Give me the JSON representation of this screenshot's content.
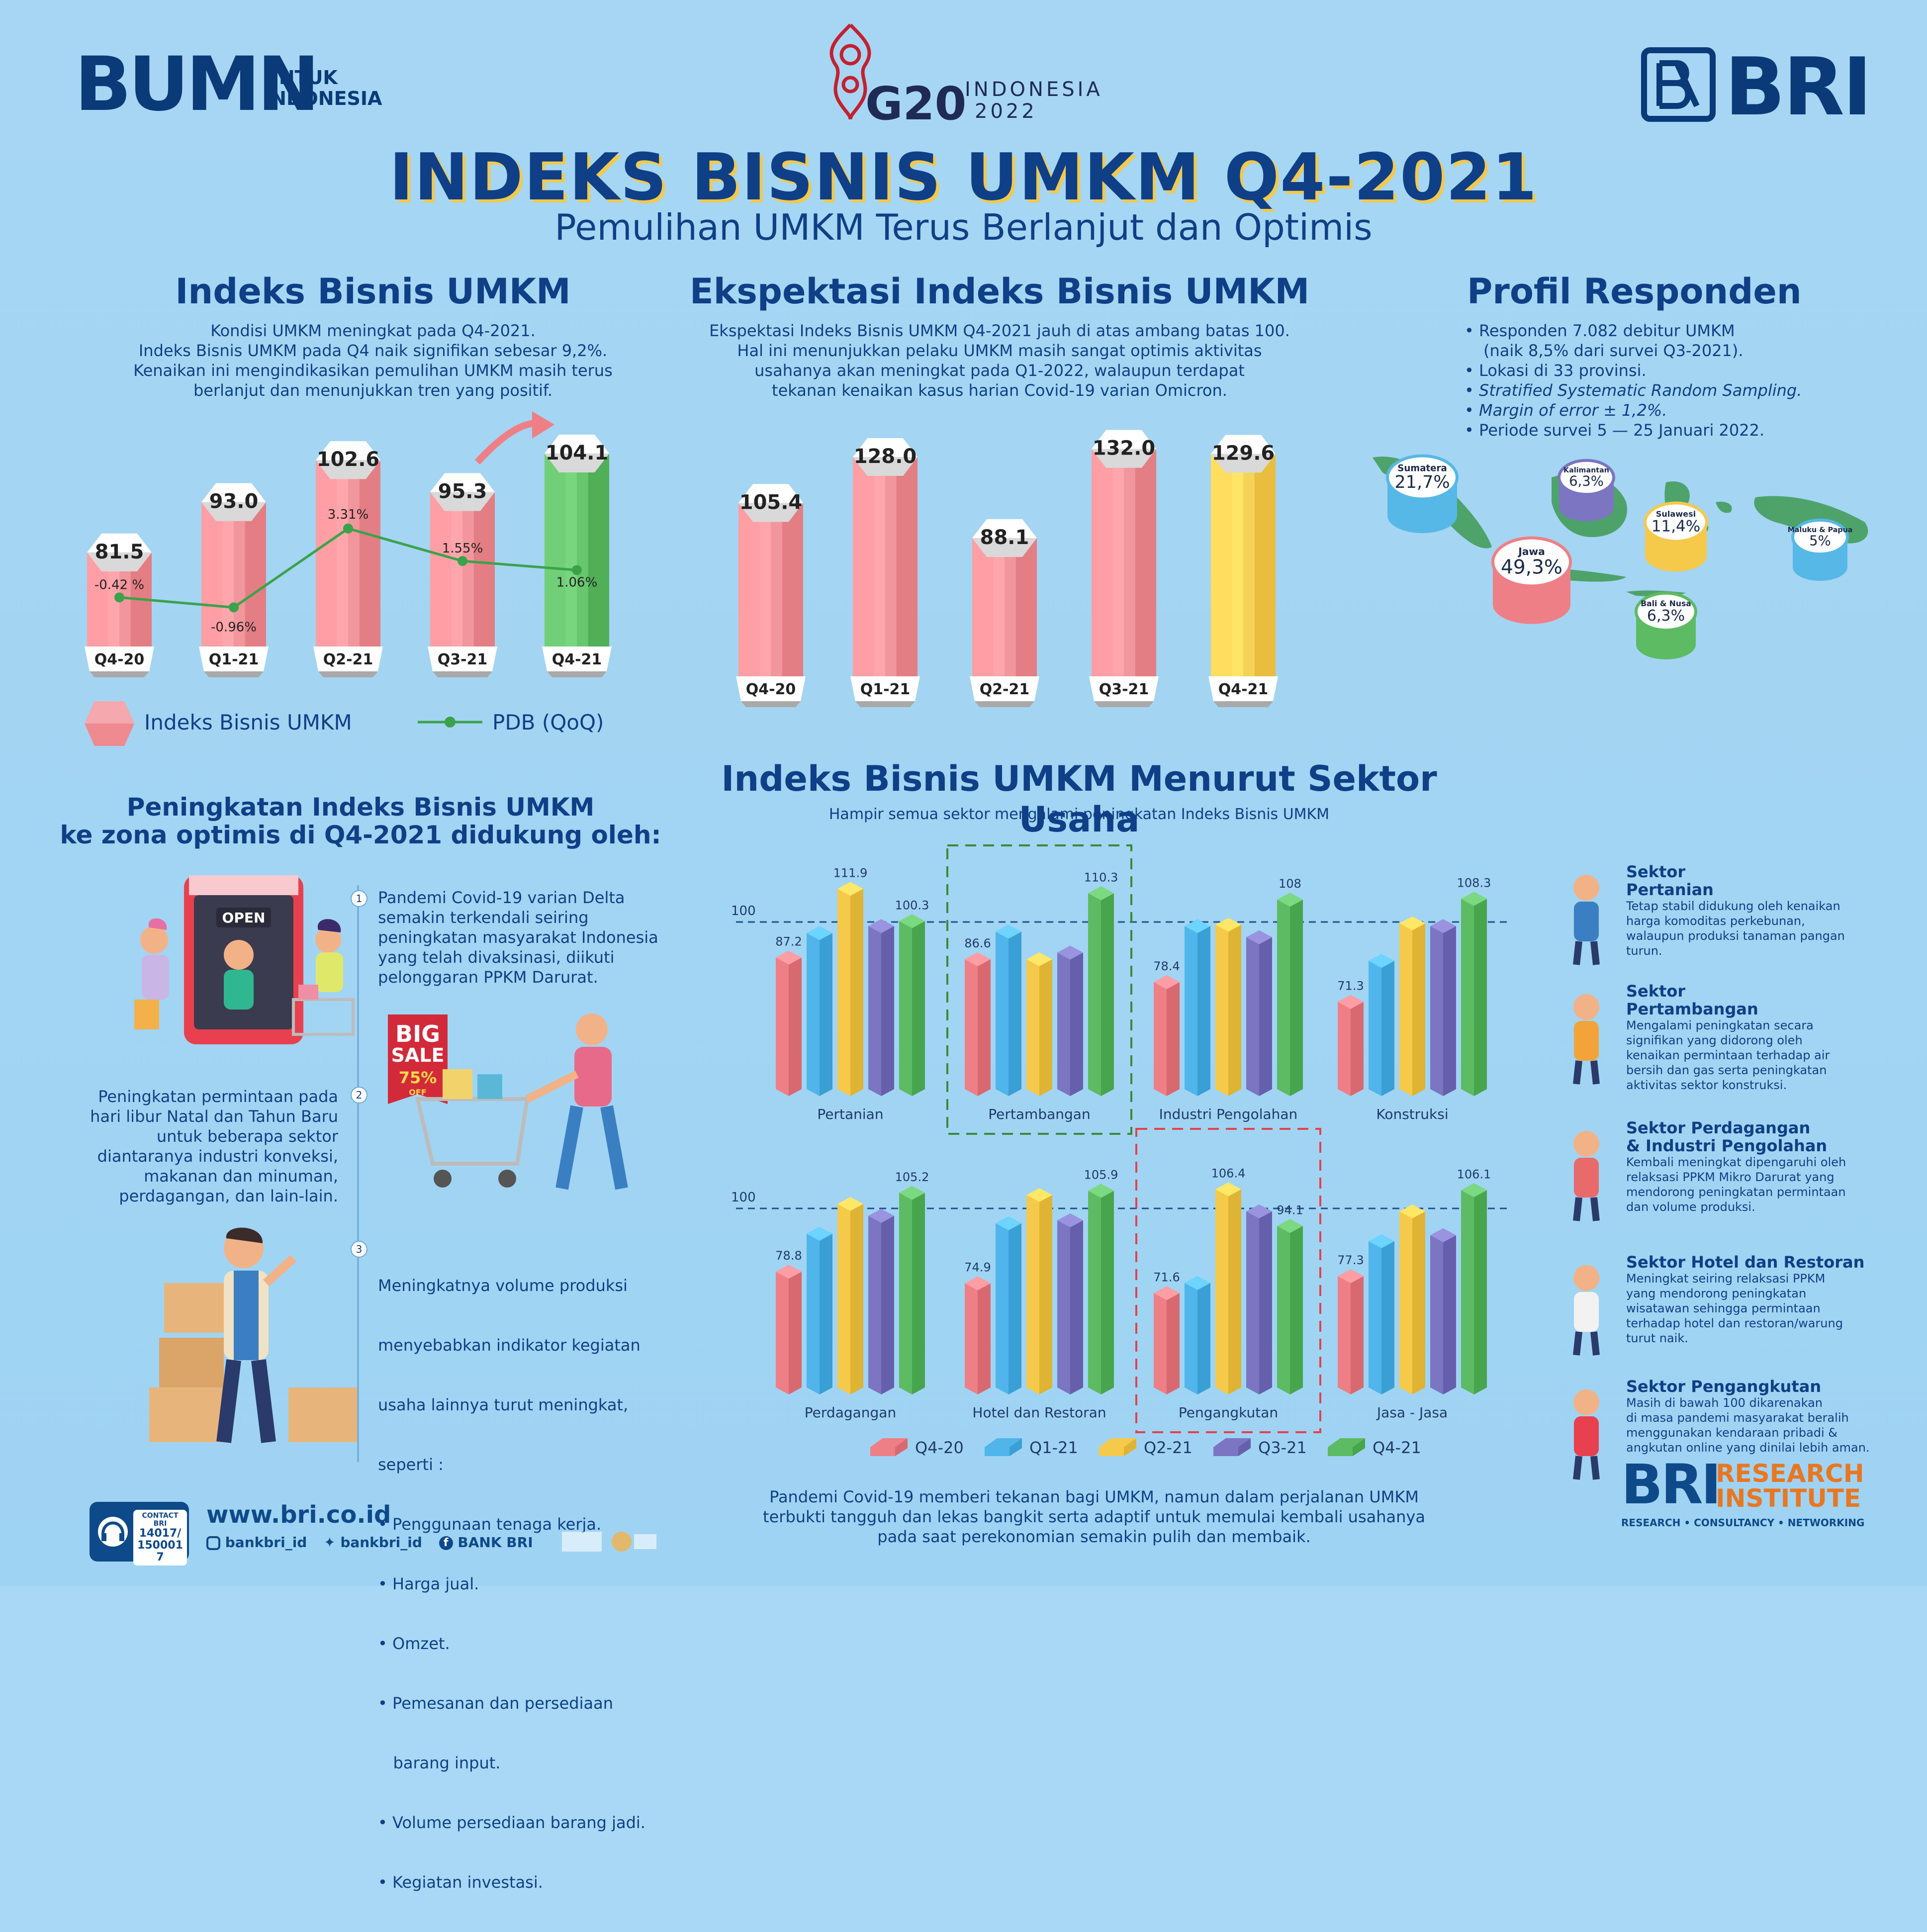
{
  "header": {
    "bumn_logo": "BUMN",
    "bumn_tagline_1": "UNTUK",
    "bumn_tagline_2": "INDONESIA",
    "g20_label": "G20",
    "g20_country": "INDONESIA",
    "g20_year": "2022",
    "bri_logo": "BRI",
    "title": "INDEKS BISNIS UMKM Q4-2021",
    "subtitle": "Pemulihan UMKM Terus Berlanjut dan Optimis"
  },
  "section1": {
    "title": "Indeks Bisnis UMKM",
    "desc": [
      "Kondisi UMKM meningkat pada Q4-2021.",
      "Indeks Bisnis UMKM pada Q4 naik signifikan sebesar 9,2%.",
      "Kenaikan ini mengindikasikan pemulihan UMKM masih terus",
      "berlanjut dan menunjukkan tren yang positif."
    ],
    "legend_index": "Indeks Bisnis UMKM",
    "legend_pdb": "PDB (QoQ)"
  },
  "section2": {
    "title": "Ekspektasi Indeks Bisnis UMKM",
    "desc": [
      "Ekspektasi Indeks Bisnis UMKM Q4-2021 jauh di atas ambang batas 100.",
      "Hal ini menunjukkan pelaku UMKM masih sangat optimis aktivitas",
      "usahanya akan meningkat pada Q1-2022, walaupun terdapat",
      "tekanan kenaikan kasus harian Covid-19 varian Omicron."
    ]
  },
  "section3": {
    "title": "Profil Responden",
    "items": [
      "• Responden 7.082 debitur UMKM",
      "   (naik 8,5% dari survei Q3-2021).",
      "• Lokasi di 33 provinsi.",
      "• Stratified Systematic Random Sampling.",
      "• Margin of error ± 1,2%.",
      "• Periode survei 5 — 25 Januari 2022."
    ],
    "regions": [
      {
        "name": "Sumatera",
        "value": "21,7%"
      },
      {
        "name": "Kalimantan",
        "value": "6,3%"
      },
      {
        "name": "Sulawesi",
        "value": "11,4%"
      },
      {
        "name": "Maluku & Papua",
        "value": "5%"
      },
      {
        "name": "Jawa",
        "value": "49,3%"
      },
      {
        "name": "Bali & Nusa",
        "value": "6,3%"
      }
    ]
  },
  "section4": {
    "title_1": "Peningkatan Indeks Bisnis UMKM",
    "title_2": "ke zona optimis di Q4-2021 didukung oleh:",
    "open_sign": "OPEN",
    "sale_big": "BIG",
    "sale_word": "SALE",
    "sale_pct": "75%",
    "sale_off": "OFF",
    "point1": [
      "Pandemi Covid-19 varian Delta",
      "semakin terkendali seiring",
      "peningkatan masyarakat Indonesia",
      "yang telah divaksinasi, diikuti",
      "pelonggaran PPKM Darurat."
    ],
    "point2": [
      "Peningkatan permintaan pada",
      "hari libur Natal dan Tahun Baru",
      "untuk beberapa sektor",
      "diantaranya industri konveksi,",
      "makanan dan minuman,",
      "perdagangan, dan lain-lain."
    ],
    "point3": [
      "Meningkatnya volume produksi",
      "menyebabkan indikator kegiatan",
      "usaha lainnya turut meningkat,",
      "seperti :",
      "• Penggunaan tenaga kerja.",
      "• Harga jual.",
      "• Omzet.",
      "• Pemesanan dan persediaan",
      "   barang input.",
      "• Volume persediaan barang jadi.",
      "• Kegiatan investasi."
    ],
    "nums": [
      "1",
      "2",
      "3"
    ]
  },
  "section5": {
    "title": "Indeks Bisnis UMKM Menurut Sektor Usaha",
    "subtitle": "Hampir semua sektor mengalami peningkatan Indeks Bisnis UMKM",
    "footer": [
      "Pandemi Covid-19 memberi tekanan bagi UMKM, namun dalam perjalanan UMKM",
      "terbukti tangguh dan lekas bangkit serta adaptif untuk memulai kembali usahanya",
      "pada saat perekonomian semakin pulih dan membaik."
    ]
  },
  "sectors_info": [
    {
      "title": [
        "Sektor",
        "Pertanian"
      ],
      "desc": [
        "Tetap stabil didukung oleh kenaikan",
        "harga komoditas perkebunan,",
        "walaupun produksi tanaman pangan",
        "turun."
      ]
    },
    {
      "title": [
        "Sektor",
        "Pertambangan"
      ],
      "desc": [
        "Mengalami peningkatan secara",
        "signifikan yang didorong oleh",
        "kenaikan permintaan terhadap air",
        "bersih dan gas serta peningkatan",
        "aktivitas sektor konstruksi."
      ]
    },
    {
      "title": [
        "Sektor Perdagangan",
        "& Industri Pengolahan"
      ],
      "desc": [
        "Kembali meningkat dipengaruhi oleh",
        "relaksasi PPKM Mikro Darurat yang",
        "mendorong peningkatan permintaan",
        "dan volume produksi."
      ]
    },
    {
      "title": [
        "Sektor Hotel dan Restoran"
      ],
      "desc": [
        "Meningkat seiring relaksasi PPKM",
        "yang mendorong peningkatan",
        "wisatawan sehingga permintaan",
        "terhadap hotel dan restoran/warung",
        "turut naik."
      ]
    },
    {
      "title": [
        "Sektor Pengangkutan"
      ],
      "desc": [
        "Masih di bawah 100 dikarenakan",
        "di masa pandemi masyarakat beralih",
        "menggunakan kendaraan pribadi &",
        "angkutan online yang dinilai lebih aman."
      ]
    }
  ],
  "footer": {
    "contact_label": "CONTACT BRI",
    "contact_numbers": "14017/ 1500017",
    "website": "www.bri.co.id",
    "instagram": "bankbri_id",
    "twitter": "bankbri_id",
    "facebook": "BANK BRI",
    "research_1": "RESEARCH",
    "research_2": "INSTITUTE",
    "research_tagline": "RESEARCH • CONSULTANCY • NETWORKING"
  },
  "chart_data": [
    {
      "type": "bar",
      "categories": [
        "Q4-20",
        "Q1-21",
        "Q2-21",
        "Q3-21",
        "Q4-21"
      ],
      "series": [
        {
          "name": "Indeks Bisnis UMKM",
          "values": [
            81.5,
            93.0,
            102.6,
            95.3,
            104.1
          ],
          "labels": [
            "81.5",
            "93.0",
            "102.6",
            "95.3",
            "104.1"
          ]
        },
        {
          "name": "PDB (QoQ)",
          "type": "line",
          "values": [
            -0.42,
            -0.96,
            3.31,
            1.55,
            1.06
          ],
          "labels": [
            "-0.42 %",
            "-0.96%",
            "3.31%",
            "1.55%",
            "1.06%"
          ]
        }
      ]
    },
    {
      "type": "bar",
      "categories": [
        "Q4-20",
        "Q1-21",
        "Q2-21",
        "Q3-21",
        "Q4-21"
      ],
      "values": [
        105.4,
        128.0,
        88.1,
        132.0,
        129.6
      ],
      "labels": [
        "105.4",
        "128.0",
        "88.1",
        "132.0",
        "129.6"
      ]
    },
    {
      "type": "bar",
      "series_names": [
        "Q4-20",
        "Q1-21",
        "Q2-21",
        "Q3-21",
        "Q4-21"
      ],
      "colors": [
        "#ef7f86",
        "#4fb5ea",
        "#f5c94a",
        "#7c75c2",
        "#5dbb63"
      ],
      "reference": {
        "value": 100,
        "label": "100"
      },
      "groups": [
        {
          "name": "Pertanian",
          "values": [
            87.2,
            96,
            111.9,
            98.5,
            100.3
          ],
          "labels": {
            "0": "87.2",
            "2": "111.9",
            "4": "100.3"
          }
        },
        {
          "name": "Pertambangan",
          "values": [
            86.6,
            96.5,
            86.6,
            89,
            110.3
          ],
          "labels": {
            "0": "86.6",
            "4": "110.3"
          }
        },
        {
          "name": "Industri Pengolahan",
          "values": [
            78.4,
            98.5,
            99,
            94.5,
            108
          ],
          "labels": {
            "0": "78.4",
            "4": "108"
          }
        },
        {
          "name": "Konstruksi",
          "values": [
            71.3,
            86,
            99.5,
            98.5,
            108.3
          ],
          "labels": {
            "0": "71.3",
            "4": "108.3"
          }
        },
        {
          "name": "Perdagangan",
          "values": [
            78.8,
            91.5,
            101.5,
            97.5,
            105.2
          ],
          "labels": {
            "0": "78.8",
            "4": "105.2"
          }
        },
        {
          "name": "Hotel dan Restoran",
          "values": [
            74.9,
            95,
            104.5,
            96,
            105.9
          ],
          "labels": {
            "0": "74.9",
            "4": "105.9"
          }
        },
        {
          "name": "Pengangkutan",
          "values": [
            71.6,
            75,
            106.4,
            99,
            94.1
          ],
          "labels": {
            "0": "71.6",
            "2": "106.4",
            "4": "94.1"
          }
        },
        {
          "name": "Jasa - Jasa",
          "values": [
            77.3,
            89,
            99,
            91,
            106.1
          ],
          "labels": {
            "0": "77.3",
            "4": "106.1"
          }
        }
      ],
      "highlighted": [
        {
          "group": "Pertambangan",
          "color": "green"
        },
        {
          "group": "Pengangkutan",
          "color": "red"
        }
      ]
    }
  ]
}
